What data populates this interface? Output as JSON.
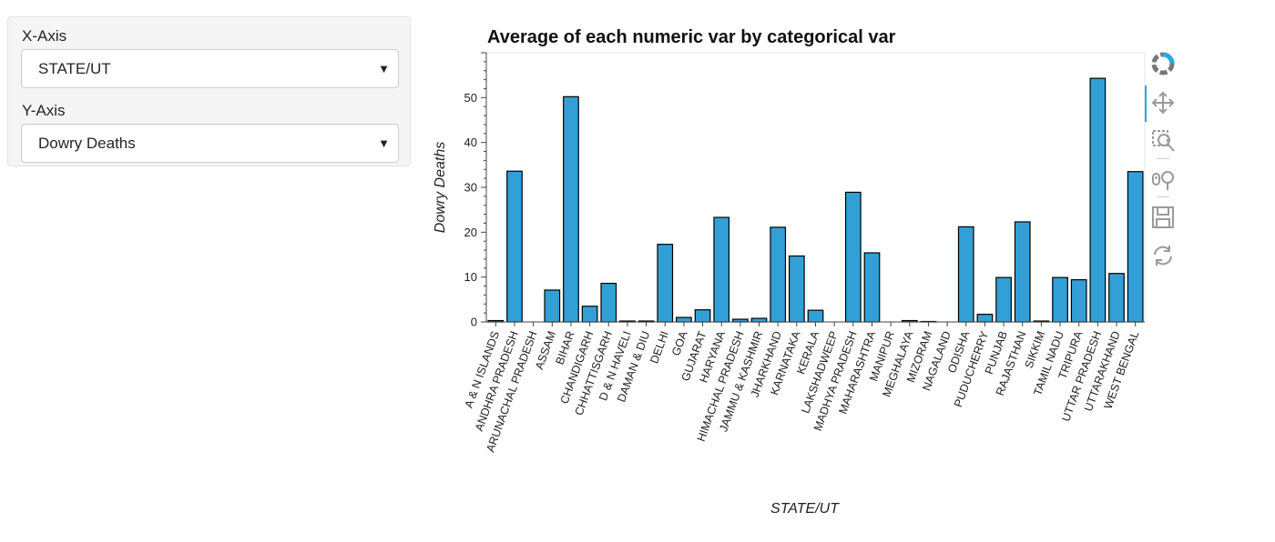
{
  "controls": {
    "x_axis": {
      "label": "X-Axis",
      "value": "STATE/UT"
    },
    "y_axis": {
      "label": "Y-Axis",
      "value": "Dowry Deaths"
    }
  },
  "toolbar": {
    "tools": [
      "bokeh-logo-icon",
      "pan-icon",
      "box-zoom-icon",
      "wheel-zoom-icon",
      "save-icon",
      "reset-icon"
    ]
  },
  "colors": {
    "bar_fill": "#32a0d6",
    "bar_stroke": "#000000",
    "axis": "#444444",
    "text": "#222222"
  },
  "chart_data": {
    "type": "bar",
    "title": "Average of each numeric var by categorical var",
    "xlabel": "STATE/UT",
    "ylabel": "Dowry Deaths",
    "ylim": [
      0,
      60
    ],
    "yticks": [
      0,
      10,
      20,
      30,
      40,
      50
    ],
    "grid": false,
    "categories": [
      "A & N ISLANDS",
      "ANDHRA PRADESH",
      "ARUNACHAL PRADESH",
      "ASSAM",
      "BIHAR",
      "CHANDIGARH",
      "CHHATTISGARH",
      "D & N HAVELI",
      "DAMAN & DIU",
      "DELHI",
      "GOA",
      "GUJARAT",
      "HARYANA",
      "HIMACHAL PRADESH",
      "JAMMU & KASHMIR",
      "JHARKHAND",
      "KARNATAKA",
      "KERALA",
      "LAKSHADWEEP",
      "MADHYA PRADESH",
      "MAHARASHTRA",
      "MANIPUR",
      "MEGHALAYA",
      "MIZORAM",
      "NAGALAND",
      "ODISHA",
      "PUDUCHERRY",
      "PUNJAB",
      "RAJASTHAN",
      "SIKKIM",
      "TAMIL NADU",
      "TRIPURA",
      "UTTAR PRADESH",
      "UTTARAKHAND",
      "WEST BENGAL"
    ],
    "values": [
      0.3,
      33.6,
      0.0,
      7.1,
      50.2,
      3.5,
      8.6,
      0.2,
      0.2,
      17.3,
      1.0,
      2.7,
      23.3,
      0.6,
      0.8,
      21.1,
      14.7,
      2.6,
      0.0,
      28.9,
      15.4,
      0.0,
      0.3,
      0.1,
      0.0,
      21.2,
      1.7,
      9.9,
      22.3,
      0.2,
      9.9,
      9.4,
      54.3,
      10.8,
      33.5
    ]
  }
}
